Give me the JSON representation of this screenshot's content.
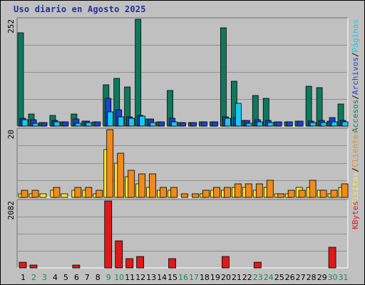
{
  "title": "Uso diario en Agosto 2025",
  "colors": {
    "accesos": "#0d7a5f",
    "archivos": "#2040d0",
    "paginas": "#18c8f0",
    "visitas": "#ffe830",
    "clientes": "#f08a18",
    "kbytes": "#e01818",
    "weekend_tick": "#1a8a50",
    "weekday_tick": "#000000",
    "title": "#1f2f9f",
    "panel_bg": "#c0c0c0",
    "grid": "#909090"
  },
  "chart_data": [
    {
      "type": "bar",
      "panel": "top",
      "y_max_label": "252",
      "ylim": [
        0,
        252
      ],
      "right_labels": [
        {
          "text": "Accesos",
          "color_key": "accesos"
        },
        {
          "text": "Archivos",
          "color_key": "archivos"
        },
        {
          "text": "Páginas",
          "color_key": "paginas"
        }
      ],
      "separator": "/",
      "categories": [
        "1",
        "2",
        "3",
        "4",
        "5",
        "6",
        "7",
        "8",
        "9",
        "10",
        "11",
        "12",
        "13",
        "14",
        "15",
        "16",
        "17",
        "18",
        "19",
        "20",
        "21",
        "22",
        "23",
        "24",
        "25",
        "26",
        "27",
        "28",
        "29",
        "30",
        "31"
      ],
      "series": [
        {
          "name": "Accesos",
          "color_key": "accesos",
          "values": [
            220,
            28,
            8,
            25,
            10,
            28,
            12,
            10,
            98,
            112,
            92,
            252,
            16,
            10,
            84,
            8,
            8,
            10,
            10,
            232,
            106,
            13,
            72,
            66,
            10,
            10,
            12,
            94,
            90,
            12,
            52
          ]
        },
        {
          "name": "Archivos",
          "color_key": "archivos",
          "values": [
            18,
            15,
            8,
            14,
            10,
            16,
            12,
            10,
            66,
            38,
            22,
            25,
            16,
            10,
            18,
            8,
            8,
            10,
            10,
            22,
            20,
            13,
            15,
            13,
            10,
            10,
            12,
            12,
            14,
            20,
            13
          ]
        },
        {
          "name": "Páginas",
          "color_key": "paginas",
          "values": [
            15,
            6,
            0,
            10,
            0,
            6,
            8,
            0,
            34,
            22,
            18,
            24,
            8,
            0,
            10,
            0,
            0,
            0,
            0,
            18,
            54,
            6,
            10,
            8,
            0,
            0,
            0,
            8,
            8,
            10,
            10
          ]
        }
      ]
    },
    {
      "type": "bar",
      "panel": "middle",
      "y_max_label": "20",
      "ylim": [
        0,
        20
      ],
      "right_labels": [
        {
          "text": "Visitas",
          "color_key": "visitas"
        },
        {
          "text": "Clientes",
          "color_key": "clientes"
        }
      ],
      "separator": "/",
      "categories": [
        "1",
        "2",
        "3",
        "4",
        "5",
        "6",
        "7",
        "8",
        "9",
        "10",
        "11",
        "12",
        "13",
        "14",
        "15",
        "16",
        "17",
        "18",
        "19",
        "20",
        "21",
        "22",
        "23",
        "24",
        "25",
        "26",
        "27",
        "28",
        "29",
        "30",
        "31"
      ],
      "series": [
        {
          "name": "Visitas",
          "color_key": "visitas",
          "values": [
            1,
            1,
            1,
            2,
            1,
            2,
            2,
            1,
            14,
            10,
            6,
            4,
            3,
            2,
            2,
            0,
            0,
            1,
            2,
            2,
            3,
            3,
            2,
            3,
            1,
            1,
            3,
            3,
            2,
            1,
            3
          ]
        },
        {
          "name": "Clientes",
          "color_key": "clientes",
          "values": [
            2,
            2,
            0,
            3,
            0,
            3,
            3,
            2,
            20,
            13,
            8,
            7,
            7,
            3,
            3,
            1,
            1,
            2,
            3,
            3,
            4,
            4,
            4,
            5,
            1,
            2,
            2,
            5,
            2,
            2,
            4
          ]
        }
      ]
    },
    {
      "type": "bar",
      "panel": "bottom",
      "y_max_label": "2082",
      "ylim": [
        0,
        2082
      ],
      "right_labels": [
        {
          "text": "KBytes",
          "color_key": "kbytes"
        }
      ],
      "categories": [
        "1",
        "2",
        "3",
        "4",
        "5",
        "6",
        "7",
        "8",
        "9",
        "10",
        "11",
        "12",
        "13",
        "14",
        "15",
        "16",
        "17",
        "18",
        "19",
        "20",
        "21",
        "22",
        "23",
        "24",
        "25",
        "26",
        "27",
        "28",
        "29",
        "30",
        "31"
      ],
      "weekend_days": [
        "2",
        "3",
        "9",
        "10",
        "16",
        "17",
        "23",
        "24",
        "30",
        "31"
      ],
      "series": [
        {
          "name": "KBytes",
          "color_key": "kbytes",
          "values": [
            180,
            90,
            0,
            0,
            0,
            90,
            0,
            0,
            2082,
            850,
            280,
            350,
            0,
            0,
            280,
            0,
            0,
            0,
            0,
            360,
            0,
            0,
            180,
            0,
            0,
            0,
            0,
            0,
            0,
            650,
            0
          ]
        }
      ]
    }
  ]
}
